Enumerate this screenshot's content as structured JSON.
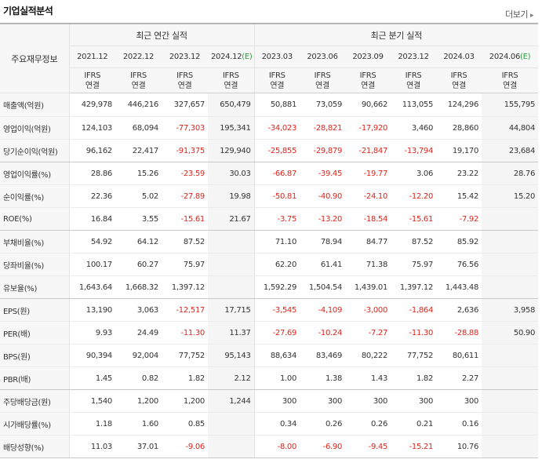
{
  "section": {
    "title": "기업실적분석",
    "more_label": "더보기"
  },
  "table": {
    "row_header_title": "주요재무정보",
    "annual_group_label": "최근 연간 실적",
    "quarter_group_label": "최근 분기 실적",
    "annual_periods": [
      {
        "period": "2021.12",
        "est": ""
      },
      {
        "period": "2022.12",
        "est": ""
      },
      {
        "period": "2023.12",
        "est": ""
      },
      {
        "period": "2024.12",
        "est": "(E)"
      }
    ],
    "quarter_periods": [
      {
        "period": "2023.03",
        "est": ""
      },
      {
        "period": "2023.06",
        "est": ""
      },
      {
        "period": "2023.09",
        "est": ""
      },
      {
        "period": "2023.12",
        "est": ""
      },
      {
        "period": "2024.03",
        "est": ""
      },
      {
        "period": "2024.06",
        "est": "(E)"
      }
    ],
    "basis_line1": "IFRS",
    "basis_line2": "연결",
    "rows": [
      {
        "label": "매출액(억원)",
        "values": [
          "429,978",
          "446,216",
          "327,657",
          "650,479",
          "50,881",
          "73,059",
          "90,662",
          "113,055",
          "124,296",
          "155,795"
        ]
      },
      {
        "label": "영업이익(억원)",
        "values": [
          "124,103",
          "68,094",
          "-77,303",
          "195,341",
          "-34,023",
          "-28,821",
          "-17,920",
          "3,460",
          "28,860",
          "44,804"
        ]
      },
      {
        "label": "당기순이익(억원)",
        "values": [
          "96,162",
          "22,417",
          "-91,375",
          "129,940",
          "-25,855",
          "-29,879",
          "-21,847",
          "-13,794",
          "19,170",
          "23,684"
        ]
      },
      {
        "label": "영업이익률(%)",
        "values": [
          "28.86",
          "15.26",
          "-23.59",
          "30.03",
          "-66.87",
          "-39.45",
          "-19.77",
          "3.06",
          "23.22",
          "28.76"
        ]
      },
      {
        "label": "순이익률(%)",
        "values": [
          "22.36",
          "5.02",
          "-27.89",
          "19.98",
          "-50.81",
          "-40.90",
          "-24.10",
          "-12.20",
          "15.42",
          "15.20"
        ]
      },
      {
        "label": "ROE(%)",
        "values": [
          "16.84",
          "3.55",
          "-15.61",
          "21.67",
          "-3.75",
          "-13.20",
          "-18.54",
          "-15.61",
          "-7.92",
          ""
        ]
      },
      {
        "label": "부채비율(%)",
        "values": [
          "54.92",
          "64.12",
          "87.52",
          "",
          "71.10",
          "78.94",
          "84.77",
          "87.52",
          "85.92",
          ""
        ]
      },
      {
        "label": "당좌비율(%)",
        "values": [
          "100.17",
          "60.27",
          "75.97",
          "",
          "62.20",
          "61.41",
          "71.38",
          "75.97",
          "76.56",
          ""
        ]
      },
      {
        "label": "유보율(%)",
        "values": [
          "1,643.64",
          "1,668.32",
          "1,397.12",
          "",
          "1,592.29",
          "1,504.54",
          "1,439.01",
          "1,397.12",
          "1,443.48",
          ""
        ]
      },
      {
        "label": "EPS(원)",
        "values": [
          "13,190",
          "3,063",
          "-12,517",
          "17,715",
          "-3,545",
          "-4,109",
          "-3,000",
          "-1,864",
          "2,636",
          "3,958"
        ]
      },
      {
        "label": "PER(배)",
        "values": [
          "9.93",
          "24.49",
          "-11.30",
          "11.37",
          "-27.69",
          "-10.24",
          "-7.27",
          "-11.30",
          "-28.88",
          "50.90"
        ]
      },
      {
        "label": "BPS(원)",
        "values": [
          "90,394",
          "92,004",
          "77,752",
          "95,143",
          "88,634",
          "83,469",
          "80,222",
          "77,752",
          "80,611",
          ""
        ]
      },
      {
        "label": "PBR(배)",
        "values": [
          "1.45",
          "0.82",
          "1.82",
          "2.12",
          "1.00",
          "1.38",
          "1.43",
          "1.82",
          "2.27",
          ""
        ]
      },
      {
        "label": "주당배당금(원)",
        "values": [
          "1,540",
          "1,200",
          "1,200",
          "1,244",
          "300",
          "300",
          "300",
          "300",
          "300",
          ""
        ]
      },
      {
        "label": "시가배당률(%)",
        "values": [
          "1.18",
          "1.60",
          "0.85",
          "",
          "0.34",
          "0.26",
          "0.26",
          "0.21",
          "0.16",
          ""
        ]
      },
      {
        "label": "배당성향(%)",
        "values": [
          "11.03",
          "37.01",
          "-9.06",
          "",
          "-8.00",
          "-6.90",
          "-9.45",
          "-15.21",
          "10.76",
          ""
        ]
      }
    ],
    "colors": {
      "negative": "#d9271e",
      "basis": "#e06a1c",
      "estimate": "#2b9d3e",
      "estimate_column_bg": "#f5f5f5"
    }
  }
}
